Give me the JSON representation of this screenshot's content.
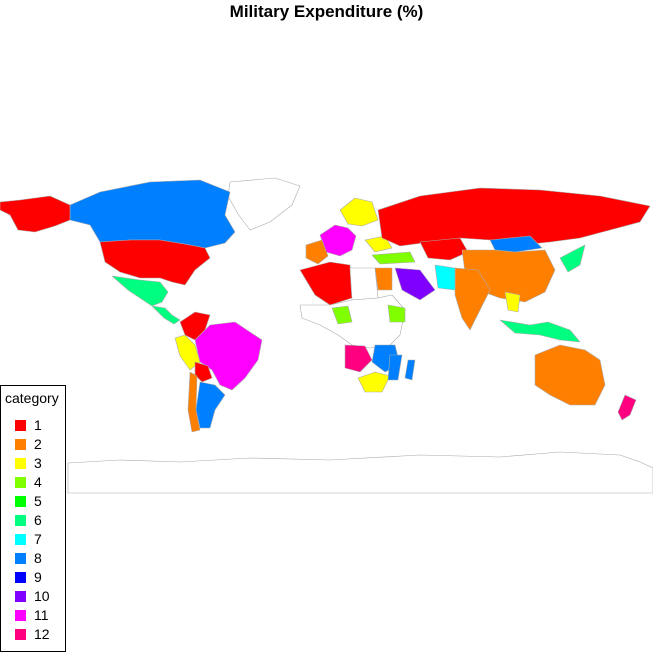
{
  "title": "Military Expenditure (%)",
  "legend": {
    "title": "category",
    "items": [
      {
        "label": "1",
        "color": "#ff0000"
      },
      {
        "label": "2",
        "color": "#ff8000"
      },
      {
        "label": "3",
        "color": "#ffff00"
      },
      {
        "label": "4",
        "color": "#80ff00"
      },
      {
        "label": "5",
        "color": "#00ff00"
      },
      {
        "label": "6",
        "color": "#00ff80"
      },
      {
        "label": "7",
        "color": "#00ffff"
      },
      {
        "label": "8",
        "color": "#0080ff"
      },
      {
        "label": "9",
        "color": "#0000ff"
      },
      {
        "label": "10",
        "color": "#8000ff"
      },
      {
        "label": "11",
        "color": "#ff00ff"
      },
      {
        "label": "12",
        "color": "#ff0080"
      }
    ]
  },
  "regions": [
    {
      "name": "Canada",
      "category": "8"
    },
    {
      "name": "United States",
      "category": "1"
    },
    {
      "name": "Alaska",
      "category": "1"
    },
    {
      "name": "Russia",
      "category": "1"
    },
    {
      "name": "Brazil",
      "category": "11"
    },
    {
      "name": "Argentina",
      "category": "8"
    },
    {
      "name": "Chile",
      "category": "2"
    },
    {
      "name": "Peru",
      "category": "3"
    },
    {
      "name": "Colombia",
      "category": "1"
    },
    {
      "name": "Mexico",
      "category": "6"
    },
    {
      "name": "Australia",
      "category": "2"
    },
    {
      "name": "New Zealand",
      "category": "12"
    },
    {
      "name": "China",
      "category": "2"
    },
    {
      "name": "Mongolia",
      "category": "8"
    },
    {
      "name": "India",
      "category": "2"
    },
    {
      "name": "Iran",
      "category": "10"
    },
    {
      "name": "Saudi Arabia",
      "category": "10"
    },
    {
      "name": "Algeria",
      "category": "1"
    },
    {
      "name": "Angola",
      "category": "12"
    },
    {
      "name": "South Africa",
      "category": "3"
    },
    {
      "name": "Japan",
      "category": "6"
    },
    {
      "name": "Kazakhstan",
      "category": "1"
    },
    {
      "name": "Indonesia",
      "category": "6"
    }
  ]
}
